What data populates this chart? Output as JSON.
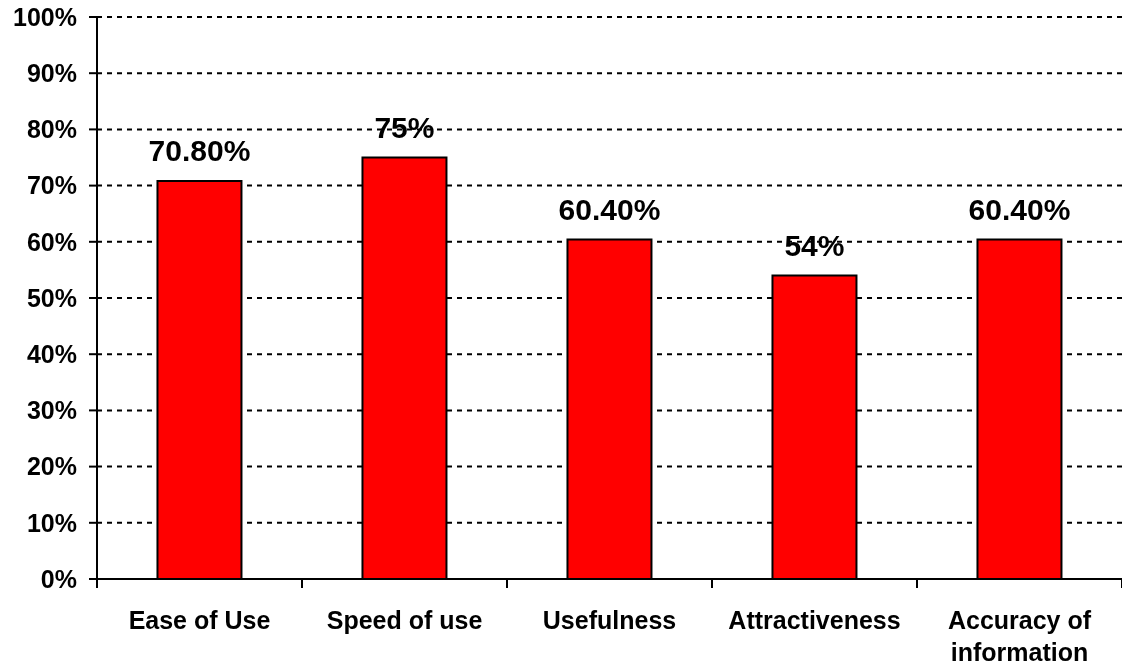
{
  "chart_data": {
    "type": "bar",
    "categories": [
      "Ease of Use",
      "Speed of use",
      "Usefulness",
      "Attractiveness",
      "Accuracy of information"
    ],
    "values": [
      70.8,
      75,
      60.4,
      54,
      60.4
    ],
    "color": "#ff0000",
    "value_labels": [
      "70.80%",
      "75%",
      "60.40%",
      "54%",
      "60.40%"
    ],
    "ylim": [
      0,
      100
    ],
    "yticks": [
      {
        "value": 0,
        "label": "0%"
      },
      {
        "value": 10,
        "label": "10%"
      },
      {
        "value": 20,
        "label": "20%"
      },
      {
        "value": 30,
        "label": "30%"
      },
      {
        "value": 40,
        "label": "40%"
      },
      {
        "value": 50,
        "label": "50%"
      },
      {
        "value": 60,
        "label": "60%"
      },
      {
        "value": 70,
        "label": "70%"
      },
      {
        "value": 80,
        "label": "80%"
      },
      {
        "value": 90,
        "label": "90%"
      },
      {
        "value": 100,
        "label": "100%"
      }
    ],
    "grid": "y"
  }
}
